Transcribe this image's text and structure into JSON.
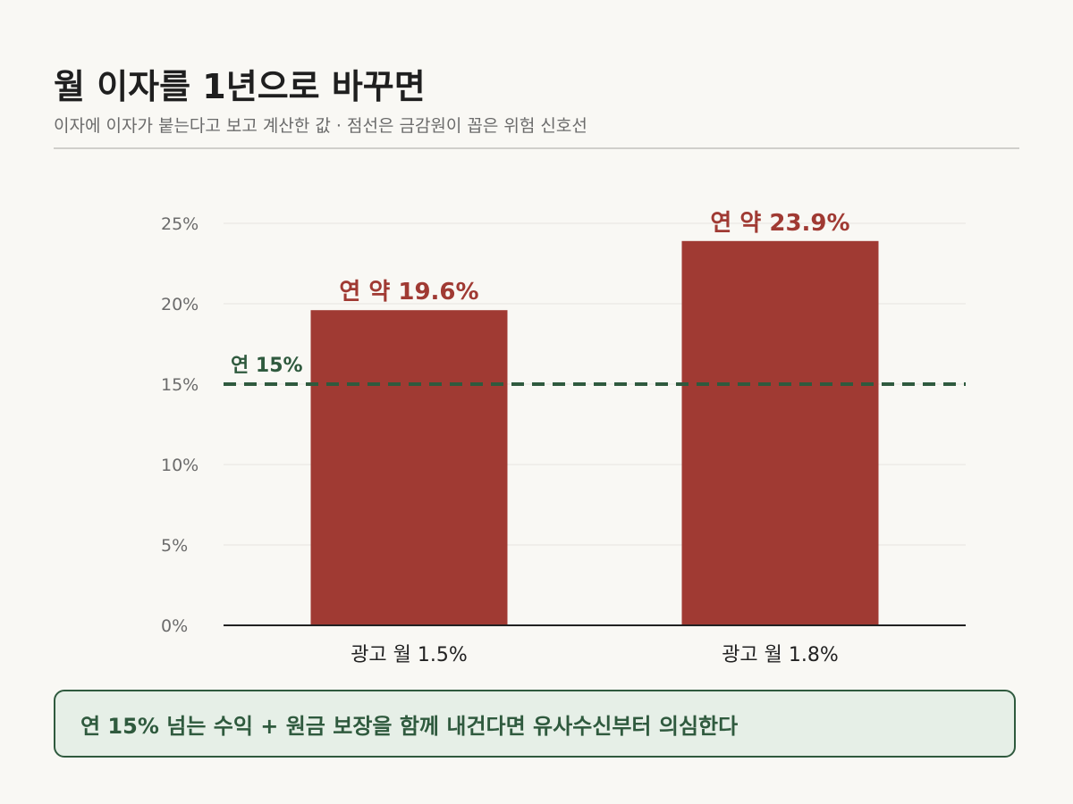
{
  "header": {
    "title": "월 이자를 1년으로 바꾸면",
    "subtitle": "이자에 이자가 붙는다고 보고 계산한 값 · 점선은 금감원이 꼽은 위험 신호선"
  },
  "callout": {
    "text": "연 15% 넘는 수익 + 원금 보장을 함께 내건다면 유사수신부터 의심한다"
  },
  "colors": {
    "bar": "#a03a33",
    "bar_label": "#a03a33",
    "threshold": "#2f5a3e",
    "grid": "#e6e4df",
    "axis": "#222222",
    "tick_label": "#6b6b6b",
    "category_label": "#222222"
  },
  "chart_data": {
    "type": "bar",
    "categories": [
      "광고 월 1.5%",
      "광고 월 1.8%"
    ],
    "values": [
      19.6,
      23.9
    ],
    "value_labels": [
      "연 약 19.6%",
      "연 약 23.9%"
    ],
    "title": "월 이자를 1년으로 바꾸면",
    "xlabel": "",
    "ylabel": "",
    "ylim": [
      0,
      25
    ],
    "yticks": [
      0,
      5,
      10,
      15,
      20,
      25
    ],
    "ytick_labels": [
      "0%",
      "5%",
      "10%",
      "15%",
      "20%",
      "25%"
    ],
    "grid": true,
    "reference_line": {
      "value": 15,
      "label": "연 15%",
      "style": "dashed"
    }
  }
}
